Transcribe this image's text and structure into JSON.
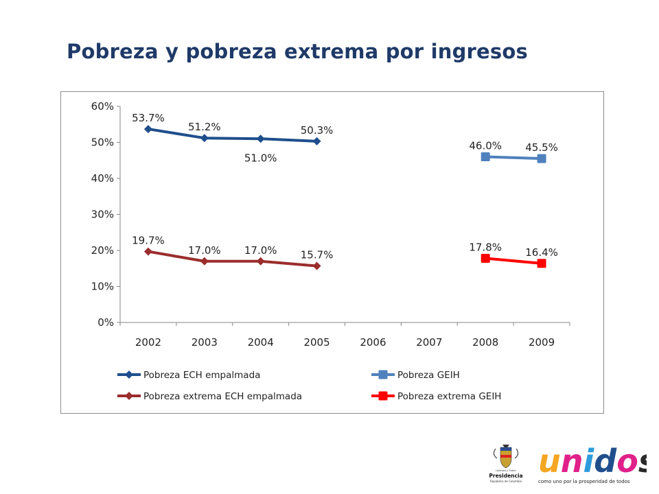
{
  "slide": {
    "title": "Pobreza y pobreza extrema por ingresos"
  },
  "chart_data": {
    "type": "line",
    "categories": [
      "2002",
      "2003",
      "2004",
      "2005",
      "2006",
      "2007",
      "2008",
      "2009"
    ],
    "category_labels": [
      "2002",
      "2003",
      "2004",
      "2005",
      "2006",
      "2007",
      "2008",
      "2009"
    ],
    "ylim": [
      0,
      60
    ],
    "yticks": [
      0,
      10,
      20,
      30,
      40,
      50,
      60
    ],
    "ytick_labels": [
      "0%",
      "10%",
      "20%",
      "30%",
      "40%",
      "50%",
      "60%"
    ],
    "grid": false,
    "legend_position": "bottom",
    "series": [
      {
        "name": "Pobreza ECH empalmada",
        "legend_label": "Pobreza ECH empalmada",
        "color": "#1f4e8c",
        "marker": "diamond",
        "values": [
          53.7,
          51.2,
          51.0,
          50.3,
          null,
          null,
          null,
          null
        ],
        "labels": [
          "53.7%",
          "51.2%",
          "51.0%",
          "50.3%",
          null,
          null,
          null,
          null
        ],
        "label_pos": [
          "above",
          "above",
          "below",
          "above",
          null,
          null,
          null,
          null
        ]
      },
      {
        "name": "Pobreza GEIH",
        "legend_label": "Pobreza GEIH",
        "color": "#4f81bd",
        "marker": "square",
        "values": [
          null,
          null,
          null,
          null,
          null,
          null,
          46.0,
          45.5
        ],
        "labels": [
          null,
          null,
          null,
          null,
          null,
          null,
          "46.0%",
          "45.5%"
        ],
        "label_pos": [
          null,
          null,
          null,
          null,
          null,
          null,
          "above",
          "above"
        ]
      },
      {
        "name": "Pobreza extrema ECH empalmada",
        "legend_label": "Pobreza extrema ECH empalmada",
        "color": "#9b2d2d",
        "marker": "diamond",
        "values": [
          19.7,
          17.0,
          17.0,
          15.7,
          null,
          null,
          null,
          null
        ],
        "labels": [
          "19.7%",
          "17.0%",
          "17.0%",
          "15.7%",
          null,
          null,
          null,
          null
        ],
        "label_pos": [
          "above",
          "above",
          "above",
          "above",
          null,
          null,
          null,
          null
        ]
      },
      {
        "name": "Pobreza extrema GEIH",
        "legend_label": "Pobreza extrema GEIH",
        "color": "#ff0000",
        "marker": "square",
        "values": [
          null,
          null,
          null,
          null,
          null,
          null,
          17.8,
          16.4
        ],
        "labels": [
          null,
          null,
          null,
          null,
          null,
          null,
          "17.8%",
          "16.4%"
        ],
        "label_pos": [
          null,
          null,
          null,
          null,
          null,
          null,
          "above",
          "above"
        ]
      }
    ]
  },
  "logos": {
    "presidencia_name": "Presidencia",
    "presidencia_sub": "República de Colombia",
    "presidencia_motto": "Libertad y Orden",
    "unidos_word": "unidos",
    "unidos_tagline": "como uno por la prosperidad de todos"
  }
}
